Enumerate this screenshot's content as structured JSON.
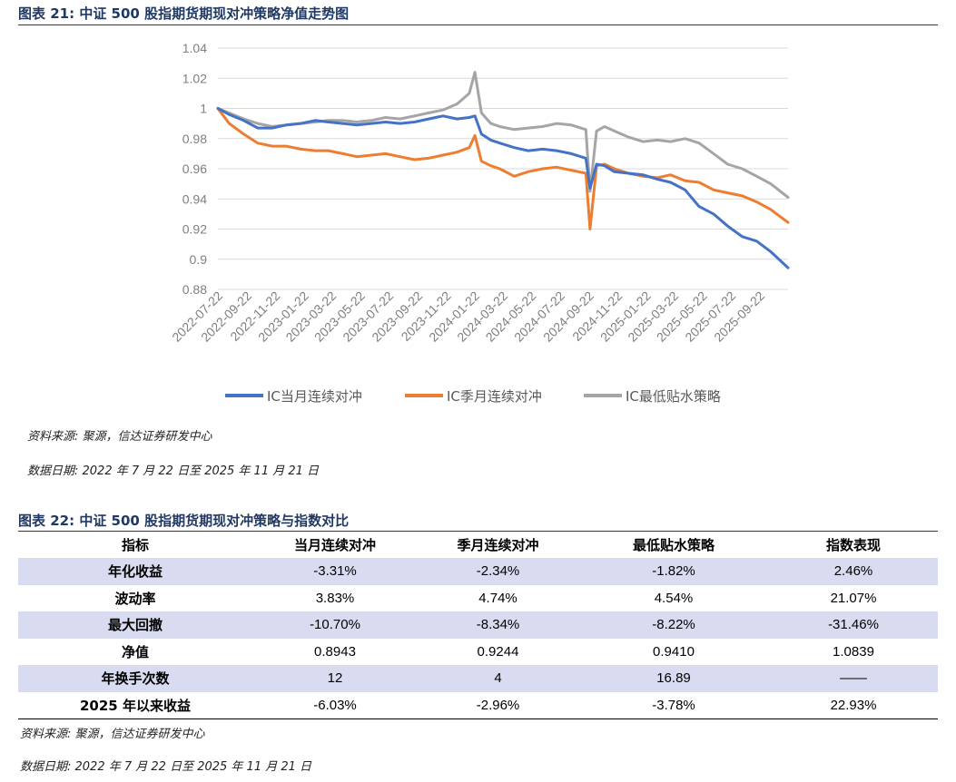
{
  "figure21": {
    "title": "图表 21:  中证 500 股指期货期现对冲策略净值走势图",
    "source": "资料来源:  聚源，信达证券研发中心",
    "date_note": "数据日期:  2022 年 7 月 22 日至 2025 年 11 月 21 日"
  },
  "chart_data": {
    "type": "line",
    "title": "",
    "xlabel": "",
    "ylabel": "",
    "ylim": [
      0.88,
      1.04
    ],
    "yticks": [
      "1.04",
      "1.02",
      "1",
      "0.98",
      "0.96",
      "0.94",
      "0.92",
      "0.9",
      "0.88"
    ],
    "x_tick_labels": [
      "2022-07-22",
      "2022-09-22",
      "2022-11-22",
      "2023-01-22",
      "2023-03-22",
      "2023-05-22",
      "2023-07-22",
      "2023-09-22",
      "2023-11-22",
      "2024-01-22",
      "2024-03-22",
      "2024-05-22",
      "2024-07-22",
      "2024-09-22",
      "2024-11-22",
      "2025-01-22",
      "2025-03-22",
      "2025-05-22",
      "2025-07-22",
      "2025-09-22"
    ],
    "grid": "horizontal",
    "legend": "bottom",
    "series": [
      {
        "name": "IC当月连续对冲",
        "color": "#4472c4",
        "x": [
          "2022-07-22",
          "2022-08-15",
          "2022-09-15",
          "2022-10-15",
          "2022-11-15",
          "2022-12-15",
          "2023-01-15",
          "2023-02-15",
          "2023-03-15",
          "2023-04-15",
          "2023-05-15",
          "2023-06-15",
          "2023-07-15",
          "2023-08-15",
          "2023-09-15",
          "2023-10-15",
          "2023-11-15",
          "2023-12-15",
          "2024-01-10",
          "2024-01-22",
          "2024-02-05",
          "2024-02-25",
          "2024-03-15",
          "2024-04-15",
          "2024-05-15",
          "2024-06-15",
          "2024-07-15",
          "2024-08-15",
          "2024-09-15",
          "2024-09-24",
          "2024-10-08",
          "2024-10-25",
          "2024-11-15",
          "2024-12-15",
          "2025-01-15",
          "2025-02-15",
          "2025-03-15",
          "2025-04-15",
          "2025-05-15",
          "2025-06-15",
          "2025-07-15",
          "2025-08-15",
          "2025-09-15",
          "2025-10-15",
          "2025-11-21"
        ],
        "values": [
          1.0,
          0.996,
          0.992,
          0.987,
          0.987,
          0.989,
          0.99,
          0.992,
          0.991,
          0.99,
          0.989,
          0.99,
          0.991,
          0.99,
          0.991,
          0.993,
          0.995,
          0.993,
          0.994,
          0.995,
          0.983,
          0.979,
          0.977,
          0.974,
          0.972,
          0.973,
          0.972,
          0.97,
          0.967,
          0.947,
          0.963,
          0.962,
          0.958,
          0.957,
          0.956,
          0.953,
          0.951,
          0.946,
          0.935,
          0.93,
          0.922,
          0.915,
          0.912,
          0.905,
          0.8943
        ]
      },
      {
        "name": "IC季月连续对冲",
        "color": "#ed7d31",
        "x": [
          "2022-07-22",
          "2022-08-15",
          "2022-09-15",
          "2022-10-15",
          "2022-11-15",
          "2022-12-15",
          "2023-01-15",
          "2023-02-15",
          "2023-03-15",
          "2023-04-15",
          "2023-05-15",
          "2023-06-15",
          "2023-07-15",
          "2023-08-15",
          "2023-09-15",
          "2023-10-15",
          "2023-11-15",
          "2023-12-15",
          "2024-01-10",
          "2024-01-22",
          "2024-02-05",
          "2024-02-25",
          "2024-03-15",
          "2024-04-15",
          "2024-05-15",
          "2024-06-15",
          "2024-07-15",
          "2024-08-15",
          "2024-09-15",
          "2024-09-24",
          "2024-10-08",
          "2024-10-25",
          "2024-11-15",
          "2024-12-15",
          "2025-01-15",
          "2025-02-15",
          "2025-03-15",
          "2025-04-15",
          "2025-05-15",
          "2025-06-15",
          "2025-07-15",
          "2025-08-15",
          "2025-09-15",
          "2025-10-15",
          "2025-11-21"
        ],
        "values": [
          1.0,
          0.99,
          0.983,
          0.977,
          0.975,
          0.975,
          0.973,
          0.972,
          0.972,
          0.97,
          0.968,
          0.969,
          0.97,
          0.968,
          0.966,
          0.967,
          0.969,
          0.971,
          0.974,
          0.982,
          0.965,
          0.962,
          0.96,
          0.955,
          0.958,
          0.96,
          0.961,
          0.959,
          0.957,
          0.92,
          0.962,
          0.963,
          0.96,
          0.957,
          0.955,
          0.954,
          0.956,
          0.952,
          0.951,
          0.946,
          0.944,
          0.942,
          0.938,
          0.933,
          0.9244
        ]
      },
      {
        "name": "IC最低贴水策略",
        "color": "#a5a5a5",
        "x": [
          "2022-07-22",
          "2022-08-15",
          "2022-09-15",
          "2022-10-15",
          "2022-11-15",
          "2022-12-15",
          "2023-01-15",
          "2023-02-15",
          "2023-03-15",
          "2023-04-15",
          "2023-05-15",
          "2023-06-15",
          "2023-07-15",
          "2023-08-15",
          "2023-09-15",
          "2023-10-15",
          "2023-11-15",
          "2023-12-15",
          "2024-01-10",
          "2024-01-22",
          "2024-02-05",
          "2024-02-25",
          "2024-03-15",
          "2024-04-15",
          "2024-05-15",
          "2024-06-15",
          "2024-07-15",
          "2024-08-15",
          "2024-09-15",
          "2024-09-24",
          "2024-10-08",
          "2024-10-25",
          "2024-11-15",
          "2024-12-15",
          "2025-01-15",
          "2025-02-15",
          "2025-03-15",
          "2025-04-15",
          "2025-05-15",
          "2025-06-15",
          "2025-07-15",
          "2025-08-15",
          "2025-09-15",
          "2025-10-15",
          "2025-11-21"
        ],
        "values": [
          1.0,
          0.997,
          0.993,
          0.99,
          0.988,
          0.989,
          0.99,
          0.991,
          0.992,
          0.992,
          0.991,
          0.992,
          0.994,
          0.993,
          0.995,
          0.997,
          0.999,
          1.003,
          1.01,
          1.024,
          0.997,
          0.99,
          0.988,
          0.986,
          0.987,
          0.988,
          0.99,
          0.989,
          0.986,
          0.945,
          0.985,
          0.988,
          0.985,
          0.981,
          0.978,
          0.979,
          0.978,
          0.98,
          0.977,
          0.97,
          0.963,
          0.96,
          0.955,
          0.95,
          0.941
        ]
      }
    ]
  },
  "figure22": {
    "title": "图表 22:  中证 500 股指期货期现对冲策略与指数对比",
    "headers": [
      "指标",
      "当月连续对冲",
      "季月连续对冲",
      "最低贴水策略",
      "指数表现"
    ],
    "rows": [
      [
        "年化收益",
        "-3.31%",
        "-2.34%",
        "-1.82%",
        "2.46%"
      ],
      [
        "波动率",
        "3.83%",
        "4.74%",
        "4.54%",
        "21.07%"
      ],
      [
        "最大回撤",
        "-10.70%",
        "-8.34%",
        "-8.22%",
        "-31.46%"
      ],
      [
        "净值",
        "0.8943",
        "0.9244",
        "0.9410",
        "1.0839"
      ],
      [
        "年换手次数",
        "12",
        "4",
        "16.89",
        "——"
      ],
      [
        "2025 年以来收益",
        "-6.03%",
        "-2.96%",
        "-3.78%",
        "22.93%"
      ]
    ],
    "source": "资料来源:  聚源，信达证券研发中心",
    "date_note": "数据日期:  2022 年 7 月 22 日至 2025 年 11 月 21 日"
  }
}
